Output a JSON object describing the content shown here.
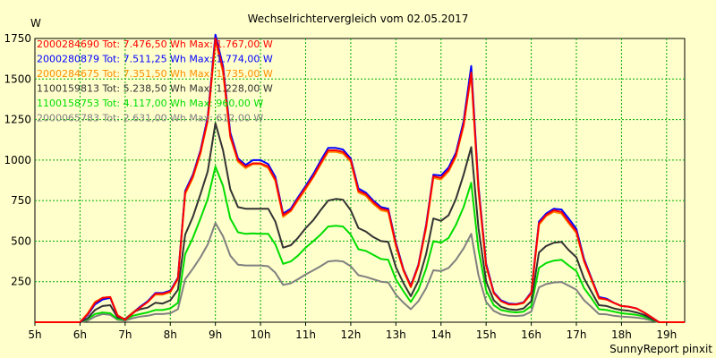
{
  "chart_data": {
    "type": "line",
    "title": "Wechselrichtervergleich vom 02.05.2017",
    "ylabel": "W",
    "footer": "SunnyReport pinxit",
    "ylim": [
      0,
      1750
    ],
    "xlim": [
      5,
      19.4
    ],
    "y_ticks": [
      250,
      500,
      750,
      1000,
      1250,
      1500,
      1750
    ],
    "x_ticks": [
      5,
      6,
      7,
      8,
      9,
      10,
      11,
      12,
      13,
      14,
      15,
      16,
      17,
      18,
      19
    ],
    "x_tick_labels": [
      "5h",
      "6h",
      "7h",
      "8h",
      "9h",
      "10h",
      "11h",
      "12h",
      "13h",
      "14h",
      "15h",
      "16h",
      "17h",
      "18h",
      "19h"
    ],
    "grid": true,
    "legend_position": "top-left",
    "x": [
      5.0,
      5.5,
      5.83,
      6.0,
      6.17,
      6.33,
      6.5,
      6.67,
      6.83,
      7.0,
      7.17,
      7.33,
      7.5,
      7.67,
      7.83,
      8.0,
      8.17,
      8.33,
      8.5,
      8.67,
      8.83,
      9.0,
      9.17,
      9.33,
      9.5,
      9.67,
      9.83,
      10.0,
      10.17,
      10.33,
      10.5,
      10.67,
      10.83,
      11.0,
      11.17,
      11.33,
      11.5,
      11.67,
      11.83,
      12.0,
      12.17,
      12.33,
      12.5,
      12.67,
      12.83,
      13.0,
      13.17,
      13.33,
      13.5,
      13.67,
      13.83,
      14.0,
      14.17,
      14.33,
      14.5,
      14.67,
      14.83,
      15.0,
      15.17,
      15.33,
      15.5,
      15.67,
      15.83,
      16.0,
      16.17,
      16.33,
      16.5,
      16.67,
      16.83,
      17.0,
      17.17,
      17.33,
      17.5,
      17.67,
      17.83,
      18.0,
      18.17,
      18.33,
      18.5,
      18.67,
      18.83,
      19.0,
      19.4
    ],
    "series": [
      {
        "name": "2000284690",
        "legend": "2000284690 Tot: 7.476,50 Wh Max: 1.767,00 W",
        "color": "#ff0000",
        "values": [
          0,
          0,
          0,
          0,
          50,
          120,
          150,
          155,
          40,
          15,
          55,
          90,
          125,
          175,
          175,
          190,
          270,
          800,
          900,
          1050,
          1250,
          1750,
          1560,
          1150,
          1000,
          960,
          980,
          980,
          960,
          880,
          660,
          690,
          760,
          830,
          900,
          980,
          1060,
          1060,
          1050,
          1000,
          810,
          790,
          740,
          700,
          690,
          480,
          320,
          220,
          350,
          590,
          900,
          890,
          940,
          1030,
          1220,
          1540,
          820,
          350,
          180,
          130,
          110,
          110,
          120,
          180,
          610,
          660,
          690,
          680,
          620,
          560,
          380,
          270,
          150,
          140,
          120,
          100,
          95,
          85,
          60,
          30,
          0,
          0,
          0
        ]
      },
      {
        "name": "2000280879",
        "legend": "2000280879 Tot: 7.511,25 Wh Max: 1.774,00 W",
        "color": "#0000ff",
        "values": [
          0,
          0,
          0,
          0,
          45,
          110,
          140,
          150,
          40,
          15,
          55,
          95,
          130,
          180,
          180,
          195,
          275,
          810,
          910,
          1060,
          1265,
          1774,
          1580,
          1170,
          1010,
          970,
          1000,
          1000,
          975,
          895,
          670,
          700,
          770,
          840,
          915,
          995,
          1075,
          1075,
          1065,
          1010,
          825,
          800,
          750,
          710,
          700,
          490,
          325,
          225,
          355,
          600,
          910,
          905,
          955,
          1045,
          1240,
          1580,
          840,
          360,
          185,
          135,
          115,
          112,
          122,
          185,
          620,
          670,
          700,
          695,
          640,
          575,
          390,
          275,
          155,
          145,
          120,
          100,
          95,
          85,
          60,
          30,
          0,
          0,
          0
        ]
      },
      {
        "name": "2000284675",
        "legend": "2000284675 Tot: 7.351,50 Wh Max: 1.735,00 W",
        "color": "#ff8c00",
        "values": [
          0,
          0,
          0,
          0,
          55,
          125,
          150,
          155,
          45,
          15,
          60,
          95,
          125,
          170,
          170,
          185,
          265,
          790,
          890,
          1040,
          1240,
          1735,
          1540,
          1140,
          990,
          950,
          975,
          975,
          950,
          870,
          650,
          685,
          750,
          820,
          895,
          970,
          1050,
          1050,
          1040,
          990,
          800,
          780,
          730,
          690,
          680,
          470,
          315,
          215,
          345,
          580,
          890,
          880,
          930,
          1020,
          1210,
          1530,
          810,
          345,
          180,
          130,
          110,
          108,
          118,
          175,
          600,
          655,
          680,
          670,
          610,
          550,
          375,
          265,
          145,
          140,
          120,
          100,
          95,
          85,
          60,
          30,
          0,
          0,
          0
        ]
      },
      {
        "name": "1100159813",
        "legend": "1100159813 Tot: 5.238,50 Wh Max: 1.228,00 W",
        "color": "#333333",
        "values": [
          0,
          0,
          0,
          0,
          25,
          75,
          100,
          105,
          30,
          20,
          60,
          80,
          90,
          120,
          115,
          135,
          200,
          540,
          650,
          790,
          930,
          1228,
          1060,
          820,
          710,
          700,
          700,
          700,
          700,
          620,
          460,
          475,
          520,
          580,
          630,
          690,
          750,
          760,
          755,
          690,
          580,
          560,
          525,
          500,
          495,
          340,
          240,
          160,
          255,
          420,
          640,
          625,
          660,
          760,
          910,
          1080,
          580,
          250,
          135,
          95,
          80,
          75,
          85,
          130,
          430,
          470,
          490,
          495,
          445,
          400,
          270,
          190,
          105,
          100,
          85,
          75,
          70,
          60,
          45,
          20,
          0,
          0,
          0
        ]
      },
      {
        "name": "1100158753",
        "legend": "1100158753 Tot: 4.117,00 Wh Max: 960,00 W",
        "color": "#00dd00",
        "values": [
          0,
          0,
          0,
          0,
          20,
          50,
          60,
          55,
          20,
          15,
          40,
          50,
          60,
          75,
          75,
          85,
          120,
          420,
          520,
          640,
          760,
          960,
          840,
          640,
          555,
          545,
          548,
          545,
          545,
          480,
          360,
          375,
          410,
          460,
          500,
          540,
          590,
          595,
          590,
          540,
          450,
          440,
          415,
          390,
          385,
          265,
          190,
          125,
          200,
          330,
          500,
          490,
          520,
          600,
          710,
          860,
          450,
          195,
          105,
          75,
          65,
          60,
          65,
          100,
          335,
          365,
          380,
          385,
          350,
          315,
          210,
          150,
          80,
          75,
          65,
          55,
          50,
          45,
          35,
          15,
          0,
          0,
          0
        ]
      },
      {
        "name": "2000065783",
        "legend": "2000065783 Tot: 2.631,00 Wh Max: 612,00 W",
        "color": "#808080",
        "values": [
          0,
          0,
          0,
          0,
          10,
          35,
          50,
          45,
          15,
          10,
          25,
          35,
          40,
          50,
          50,
          55,
          80,
          265,
          330,
          400,
          480,
          612,
          530,
          410,
          355,
          350,
          350,
          350,
          345,
          305,
          230,
          240,
          265,
          295,
          320,
          345,
          375,
          380,
          375,
          345,
          290,
          280,
          265,
          250,
          245,
          170,
          120,
          80,
          130,
          210,
          320,
          315,
          335,
          385,
          455,
          545,
          290,
          125,
          70,
          48,
          40,
          38,
          42,
          65,
          215,
          235,
          245,
          248,
          225,
          200,
          135,
          95,
          50,
          48,
          40,
          35,
          32,
          28,
          22,
          10,
          0,
          0,
          0
        ]
      }
    ]
  }
}
